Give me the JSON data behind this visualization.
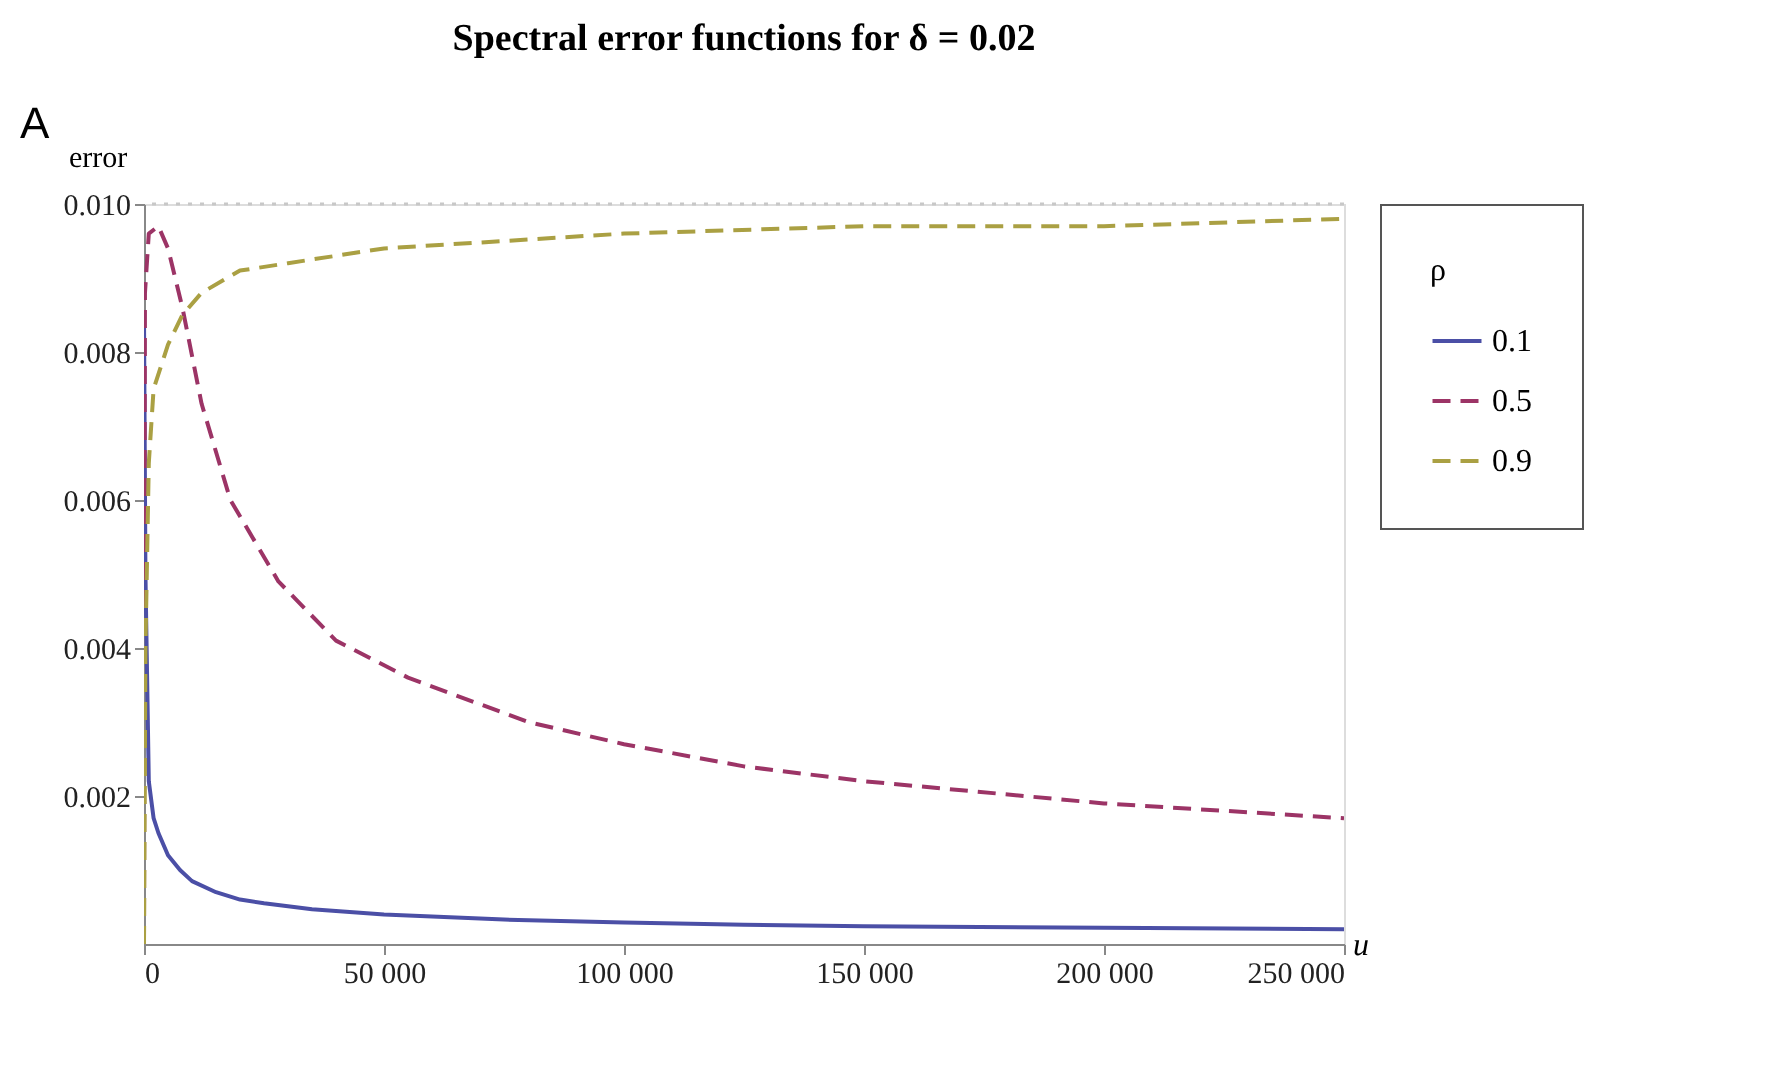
{
  "chart_data": {
    "type": "line",
    "title": "Spectral error functions for δ = 0.02",
    "xlabel": "u",
    "ylabel": "error",
    "legend_title": "ρ",
    "annotations": [
      "A"
    ],
    "xlim": [
      0,
      250000
    ],
    "ylim": [
      0,
      0.01
    ],
    "xticks": [
      0,
      {
        "value": 50000,
        "label": "50 000"
      },
      {
        "value": 100000,
        "label": "100 000"
      },
      {
        "value": 150000,
        "label": "150 000"
      },
      {
        "value": 200000,
        "label": "200 000"
      },
      {
        "value": 250000,
        "label": "250 000"
      }
    ],
    "yticks": [
      0.002,
      0.004,
      0.006,
      0.008,
      {
        "value": 0.01,
        "label": "0.010"
      }
    ],
    "grid": false,
    "legend": "right",
    "ref_lines": [
      {
        "axis": "y",
        "value": 0.01,
        "color": "#c8c8c8",
        "line_style": "dotted"
      }
    ],
    "series": [
      {
        "name": "0.1",
        "color": "#4b4fa6",
        "line_style": "solid",
        "x": [
          0,
          300,
          1000,
          2000,
          3000,
          5000,
          7500,
          10000,
          15000,
          20000,
          25000,
          35000,
          50000,
          75000,
          100000,
          125000,
          150000,
          200000,
          250000
        ],
        "values": [
          0.0085,
          0.005,
          0.0022,
          0.0017,
          0.0015,
          0.0012,
          0.001,
          0.00085,
          0.0007,
          0.0006,
          0.00055,
          0.00047,
          0.0004,
          0.00033,
          0.00029,
          0.00026,
          0.00024,
          0.00022,
          0.0002
        ]
      },
      {
        "name": "0.5",
        "color": "#9c3466",
        "line_style": "dashed",
        "x": [
          0,
          200,
          1000,
          3000,
          5000,
          8000,
          12000,
          18000,
          28000,
          40000,
          55000,
          80000,
          100000,
          125000,
          150000,
          200000,
          250000
        ],
        "values": [
          0,
          0.0088,
          0.0096,
          0.0097,
          0.0094,
          0.0086,
          0.0073,
          0.006,
          0.0049,
          0.0041,
          0.0036,
          0.003,
          0.0027,
          0.0024,
          0.0022,
          0.0019,
          0.0017
        ]
      },
      {
        "name": "0.9",
        "color": "#aaa043",
        "line_style": "dashed",
        "x": [
          0,
          300,
          1000,
          2000,
          5000,
          8000,
          12000,
          20000,
          30000,
          50000,
          75000,
          100000,
          150000,
          200000,
          250000
        ],
        "values": [
          0,
          0.004,
          0.0065,
          0.0075,
          0.0081,
          0.0085,
          0.0088,
          0.0091,
          0.0092,
          0.0094,
          0.0095,
          0.0096,
          0.0097,
          0.0097,
          0.0098
        ]
      }
    ]
  }
}
